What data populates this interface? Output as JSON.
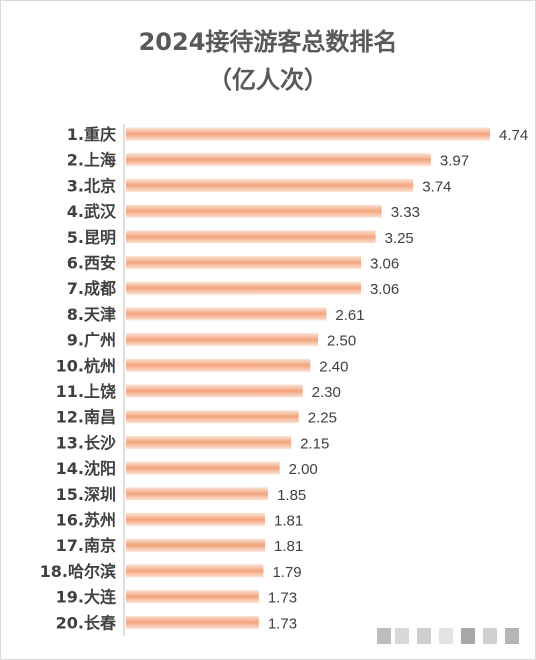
{
  "chart_data": {
    "type": "bar",
    "orientation": "horizontal",
    "title": "2024接待游客总数排名",
    "subtitle": "（亿人次）",
    "categories": [
      "1.重庆",
      "2.上海",
      "3.北京",
      "4.武汉",
      "5.昆明",
      "6.西安",
      "7.成都",
      "8.天津",
      "9.广州",
      "10.杭州",
      "11.上饶",
      "12.南昌",
      "13.长沙",
      "14.沈阳",
      "15.深圳",
      "16.苏州",
      "17.南京",
      "18.哈尔滨",
      "19.大连",
      "20.长春"
    ],
    "values": [
      4.74,
      3.97,
      3.74,
      3.33,
      3.25,
      3.06,
      3.06,
      2.61,
      2.5,
      2.4,
      2.3,
      2.25,
      2.15,
      2.0,
      1.85,
      1.81,
      1.81,
      1.79,
      1.73,
      1.73
    ],
    "value_labels": [
      "4.74",
      "3.97",
      "3.74",
      "3.33",
      "3.25",
      "3.06",
      "3.06",
      "2.61",
      "2.50",
      "2.40",
      "2.30",
      "2.25",
      "2.15",
      "2.00",
      "1.85",
      "1.81",
      "1.81",
      "1.79",
      "1.73",
      "1.73"
    ],
    "xlim": [
      0,
      4.74
    ],
    "grid": false,
    "legend": "none",
    "bar_gradient": [
      "#fbe3d5",
      "#f3a47c"
    ]
  }
}
